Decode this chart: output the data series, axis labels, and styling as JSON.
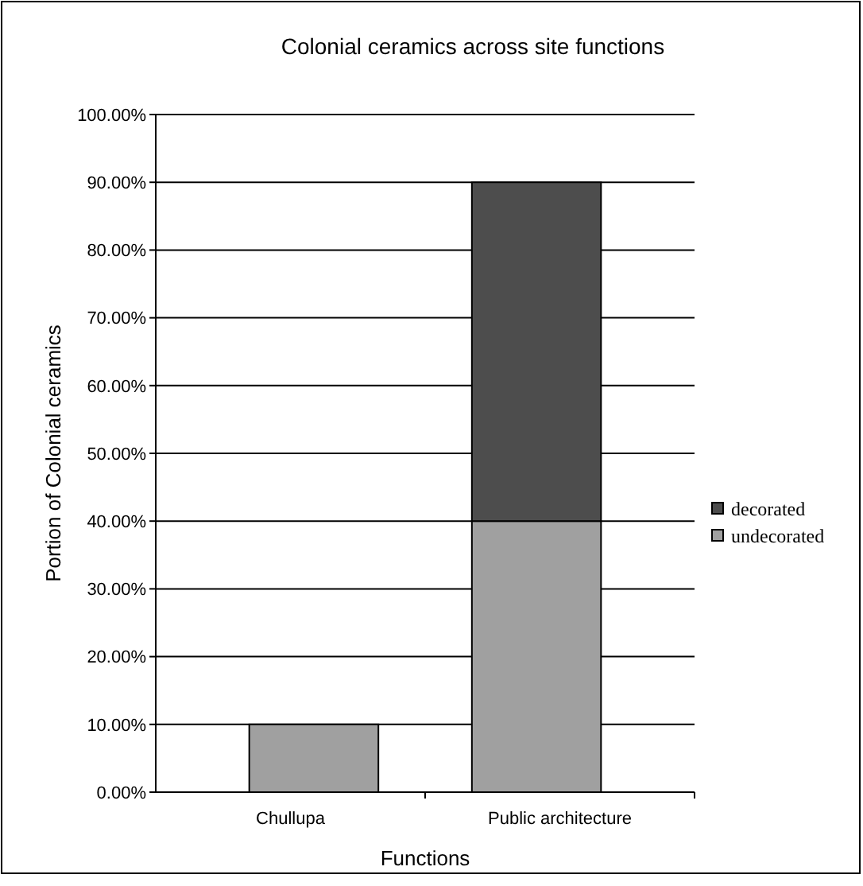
{
  "chart_data": {
    "type": "bar",
    "title": "Colonial ceramics across site functions",
    "xlabel": "Functions",
    "ylabel": "Portion of Colonial ceramics",
    "categories": [
      "Chullupa",
      "Public architecture"
    ],
    "stacked": true,
    "series": [
      {
        "name": "undecorated",
        "color": "#a0a0a0",
        "values": [
          10,
          40
        ]
      },
      {
        "name": "decorated",
        "color": "#4d4d4d",
        "values": [
          0,
          50
        ]
      }
    ],
    "ylim": [
      0,
      100
    ],
    "yticks": [
      {
        "value": 0,
        "label": "0.00%"
      },
      {
        "value": 10,
        "label": "10.00%"
      },
      {
        "value": 20,
        "label": "20.00%"
      },
      {
        "value": 30,
        "label": "30.00%"
      },
      {
        "value": 40,
        "label": "40.00%"
      },
      {
        "value": 50,
        "label": "50.00%"
      },
      {
        "value": 60,
        "label": "60.00%"
      },
      {
        "value": 70,
        "label": "70.00%"
      },
      {
        "value": 80,
        "label": "80.00%"
      },
      {
        "value": 90,
        "label": "90.00%"
      },
      {
        "value": 100,
        "label": "100.00%"
      }
    ],
    "grid": "y",
    "legend": "right"
  }
}
